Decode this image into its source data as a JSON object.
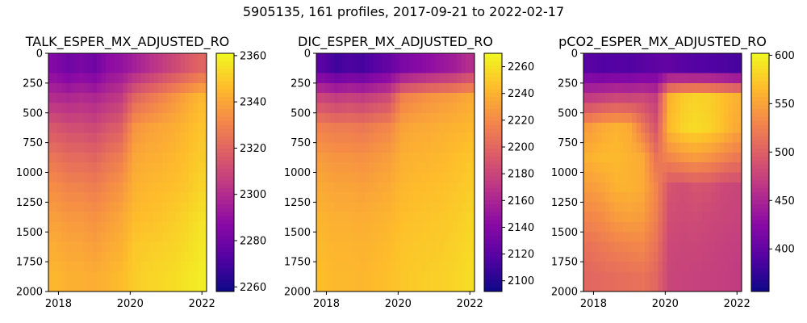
{
  "chart_data": {
    "type": "heatmap",
    "title": "5905135, 161 profiles, 2017-09-21 to 2022-02-17",
    "colormap": "plasma",
    "x_range": [
      2017.72,
      2022.13
    ],
    "y_range": [
      2000,
      0
    ],
    "x_ticks": [
      2018,
      2020,
      2022
    ],
    "x_tick_labels": [
      "2018",
      "2020",
      "2022"
    ],
    "y_ticks": [
      0,
      250,
      500,
      750,
      1000,
      1250,
      1500,
      1750,
      2000
    ],
    "y_tick_labels": [
      "0",
      "250",
      "500",
      "750",
      "1000",
      "1250",
      "1500",
      "1750",
      "2000"
    ],
    "depth_bins": [
      0,
      250,
      500,
      750,
      1000,
      1250,
      1500,
      1750,
      2000
    ],
    "panels": [
      {
        "title": "TALK_ESPER_MX_ADJUSTED_RO",
        "clim": [
          2258,
          2361
        ],
        "cbar_ticks": [
          2260,
          2280,
          2300,
          2320,
          2340,
          2360
        ],
        "cbar_tick_labels": [
          "2260",
          "2280",
          "2300",
          "2320",
          "2340",
          "2360"
        ],
        "grid": [
          [
            2285,
            2280,
            2283,
            2280,
            2288,
            2290,
            2295,
            2300,
            2305,
            2310,
            2315,
            2320
          ],
          [
            2300,
            2298,
            2300,
            2298,
            2302,
            2305,
            2320,
            2325,
            2330,
            2335,
            2340,
            2345
          ],
          [
            2315,
            2312,
            2312,
            2310,
            2315,
            2318,
            2335,
            2338,
            2340,
            2342,
            2345,
            2348
          ],
          [
            2325,
            2322,
            2322,
            2320,
            2325,
            2328,
            2340,
            2342,
            2343,
            2345,
            2347,
            2350
          ],
          [
            2333,
            2330,
            2330,
            2328,
            2332,
            2335,
            2343,
            2345,
            2346,
            2347,
            2349,
            2352
          ],
          [
            2338,
            2336,
            2336,
            2334,
            2337,
            2340,
            2346,
            2347,
            2348,
            2350,
            2352,
            2355
          ],
          [
            2342,
            2340,
            2340,
            2338,
            2341,
            2343,
            2349,
            2350,
            2351,
            2352,
            2354,
            2357
          ],
          [
            2345,
            2343,
            2343,
            2342,
            2344,
            2346,
            2350,
            2352,
            2353,
            2354,
            2356,
            2358
          ]
        ]
      },
      {
        "title": "DIC_ESPER_MX_ADJUSTED_RO",
        "clim": [
          2092,
          2270
        ],
        "cbar_ticks": [
          2100,
          2120,
          2140,
          2160,
          2180,
          2200,
          2220,
          2240,
          2260
        ],
        "cbar_tick_labels": [
          "2100",
          "2120",
          "2140",
          "2160",
          "2180",
          "2200",
          "2220",
          "2240",
          "2260"
        ],
        "grid": [
          [
            2120,
            2110,
            2115,
            2112,
            2120,
            2125,
            2135,
            2140,
            2145,
            2150,
            2155,
            2165
          ],
          [
            2180,
            2175,
            2178,
            2175,
            2180,
            2185,
            2215,
            2220,
            2225,
            2228,
            2230,
            2235
          ],
          [
            2215,
            2212,
            2212,
            2210,
            2215,
            2218,
            2232,
            2235,
            2236,
            2238,
            2240,
            2242
          ],
          [
            2228,
            2225,
            2225,
            2223,
            2227,
            2230,
            2238,
            2240,
            2241,
            2243,
            2245,
            2248
          ],
          [
            2235,
            2233,
            2233,
            2231,
            2234,
            2236,
            2242,
            2244,
            2245,
            2246,
            2248,
            2251
          ],
          [
            2240,
            2238,
            2238,
            2237,
            2239,
            2241,
            2245,
            2247,
            2248,
            2249,
            2251,
            2254
          ],
          [
            2243,
            2241,
            2241,
            2240,
            2242,
            2244,
            2248,
            2249,
            2250,
            2251,
            2253,
            2256
          ],
          [
            2245,
            2243,
            2243,
            2242,
            2244,
            2246,
            2249,
            2251,
            2252,
            2253,
            2255,
            2258
          ]
        ]
      },
      {
        "title": "pCO2_ESPER_MX_ADJUSTED_RO",
        "clim": [
          356,
          602
        ],
        "cbar_ticks": [
          400,
          450,
          500,
          550,
          600
        ],
        "cbar_tick_labels": [
          "400",
          "450",
          "500",
          "550",
          "600"
        ],
        "grid": [
          [
            395,
            390,
            392,
            390,
            395,
            398,
            400,
            395,
            392,
            390,
            388,
            385
          ],
          [
            470,
            475,
            480,
            478,
            480,
            470,
            560,
            575,
            580,
            578,
            570,
            560
          ],
          [
            545,
            555,
            560,
            555,
            520,
            490,
            565,
            580,
            585,
            580,
            570,
            555
          ],
          [
            560,
            565,
            565,
            560,
            555,
            515,
            530,
            540,
            545,
            540,
            530,
            520
          ],
          [
            545,
            550,
            560,
            560,
            555,
            530,
            490,
            485,
            490,
            488,
            480,
            478
          ],
          [
            530,
            535,
            545,
            548,
            545,
            525,
            485,
            482,
            483,
            480,
            478,
            476
          ],
          [
            515,
            520,
            525,
            528,
            530,
            515,
            480,
            478,
            478,
            476,
            474,
            472
          ],
          [
            505,
            508,
            510,
            512,
            515,
            505,
            478,
            476,
            475,
            474,
            472,
            470
          ]
        ]
      }
    ]
  }
}
